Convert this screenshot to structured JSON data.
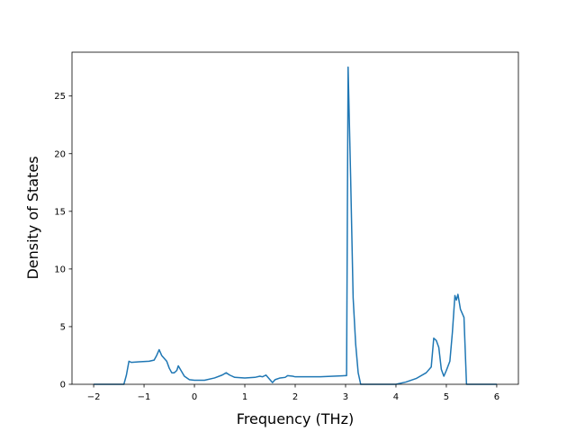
{
  "chart_data": {
    "type": "line",
    "x_label": "Frequency (THz)",
    "y_label": "Density of States",
    "xlim": [
      -2.43,
      6.43
    ],
    "ylim": [
      0,
      28.8
    ],
    "xticks": [
      {
        "value": -2,
        "label": "−2"
      },
      {
        "value": -1,
        "label": "−1"
      },
      0,
      1,
      2,
      3,
      4,
      5,
      6
    ],
    "yticks": [
      0,
      5,
      10,
      15,
      20,
      25
    ],
    "series": [
      {
        "color": "#1f77b4",
        "x": [
          -2.0,
          -1.4,
          -1.35,
          -1.3,
          -1.25,
          -1.1,
          -0.9,
          -0.8,
          -0.75,
          -0.7,
          -0.65,
          -0.55,
          -0.5,
          -0.45,
          -0.4,
          -0.35,
          -0.32,
          -0.28,
          -0.2,
          -0.1,
          0,
          0.2,
          0.4,
          0.55,
          0.63,
          0.7,
          0.8,
          1.0,
          1.2,
          1.3,
          1.35,
          1.42,
          1.48,
          1.55,
          1.6,
          1.7,
          1.8,
          1.85,
          1.95,
          2.0,
          2.5,
          3.0,
          3.02,
          3.05,
          3.1,
          3.15,
          3.2,
          3.25,
          3.3,
          4.0,
          4.2,
          4.4,
          4.6,
          4.7,
          4.75,
          4.8,
          4.85,
          4.9,
          4.95,
          5.0,
          5.07,
          5.12,
          5.17,
          5.2,
          5.23,
          5.28,
          5.35,
          5.4,
          6.0
        ],
        "values": [
          0,
          0,
          0.8,
          2.0,
          1.9,
          1.95,
          2.0,
          2.1,
          2.5,
          3.0,
          2.5,
          2.0,
          1.4,
          1.0,
          1.0,
          1.2,
          1.6,
          1.3,
          0.7,
          0.4,
          0.35,
          0.35,
          0.55,
          0.8,
          1.0,
          0.8,
          0.6,
          0.55,
          0.6,
          0.7,
          0.65,
          0.8,
          0.5,
          0.15,
          0.4,
          0.55,
          0.6,
          0.75,
          0.7,
          0.65,
          0.65,
          0.75,
          0.75,
          27.5,
          18,
          7.5,
          3.5,
          1.0,
          0,
          0,
          0.2,
          0.5,
          1.0,
          1.5,
          4.0,
          3.8,
          3.2,
          1.3,
          0.7,
          1.2,
          2.0,
          4.5,
          7.7,
          7.3,
          7.8,
          6.5,
          5.8,
          0,
          0
        ]
      }
    ]
  }
}
